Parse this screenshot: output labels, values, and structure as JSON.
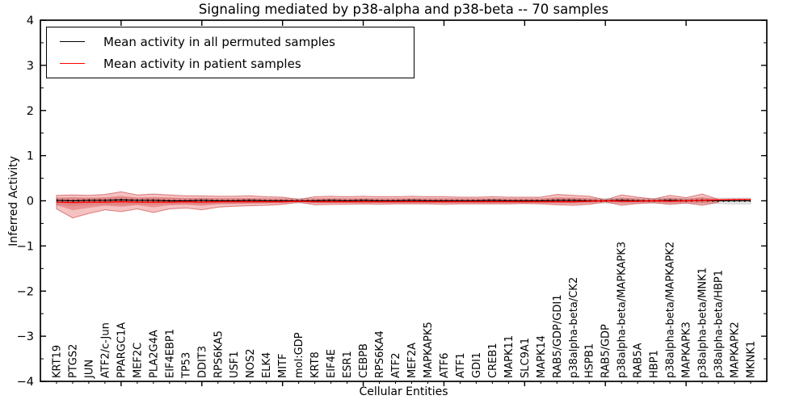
{
  "title": "Signaling mediated by p38-alpha and p38-beta -- 70 samples",
  "legend": {
    "items": [
      {
        "label": "Mean activity in all permuted samples",
        "color": "#000000"
      },
      {
        "label": "Mean activity in patient samples",
        "color": "#ff0000"
      }
    ]
  },
  "axes": {
    "xlabel": "Cellular Entities",
    "ylabel": "Inferred Activity",
    "ytick_labels": [
      "4",
      "3",
      "2",
      "1",
      "0",
      "−1",
      "−2",
      "−3",
      "−4"
    ],
    "ylim": [
      -4,
      4
    ]
  },
  "chart_data": {
    "type": "area",
    "title": "Signaling mediated by p38-alpha and p38-beta -- 70 samples",
    "xlabel": "Cellular Entities",
    "ylabel": "Inferred Activity",
    "ylim": [
      -4,
      4
    ],
    "ytick_step": 1,
    "ytick_minor_step": 0.5,
    "xtick_major_step": 5,
    "legend_position": "upper left",
    "grid": false,
    "categories": [
      "KRT19",
      "PTGS2",
      "JUN",
      "ATF2/c-Jun",
      "PPARGC1A",
      "MEF2C",
      "PLA2G4A",
      "EIF4EBP1",
      "TP53",
      "DDIT3",
      "RPS6KA5",
      "USF1",
      "NOS2",
      "ELK4",
      "MITF",
      "mol:GDP",
      "KRT8",
      "EIF4E",
      "ESR1",
      "CEBPB",
      "RPS6KA4",
      "ATF2",
      "MEF2A",
      "MAPKAPK5",
      "ATF6",
      "ATF1",
      "GDI1",
      "CREB1",
      "MAPK11",
      "SLC9A1",
      "MAPK14",
      "RAB5/GDP/GDI1",
      "p38alpha-beta/CK2",
      "HSPB1",
      "RAB5/GDP",
      "p38alpha-beta/MAPKAPK3",
      "RAB5A",
      "HBP1",
      "p38alpha-beta/MAPKAPK2",
      "MAPKAPK3",
      "p38alpha-beta/MNK1",
      "p38alpha-beta/HBP1",
      "MAPKAPK2",
      "MKNK1"
    ],
    "series": [
      {
        "name": "permuted_mean",
        "values": [
          0.01,
          0.0,
          0.01,
          0.01,
          0.02,
          0.01,
          0.01,
          0.0,
          0.0,
          0.01,
          0.0,
          0.0,
          0.01,
          0.0,
          0.0,
          0.0,
          0.0,
          0.01,
          0.0,
          0.01,
          0.0,
          0.0,
          0.01,
          0.0,
          0.0,
          0.0,
          0.0,
          0.01,
          0.0,
          0.0,
          0.0,
          0.01,
          0.01,
          0.0,
          0.0,
          0.01,
          0.0,
          0.0,
          0.01,
          0.0,
          0.01,
          0.0,
          0.0,
          0.0
        ]
      },
      {
        "name": "patient_mean",
        "values": [
          -0.03,
          -0.04,
          -0.03,
          -0.03,
          -0.02,
          -0.03,
          -0.03,
          -0.03,
          -0.02,
          -0.03,
          -0.02,
          -0.02,
          -0.02,
          -0.02,
          -0.02,
          -0.01,
          -0.02,
          -0.02,
          -0.02,
          -0.02,
          -0.02,
          -0.02,
          -0.02,
          -0.02,
          -0.02,
          -0.02,
          -0.02,
          -0.02,
          -0.02,
          -0.02,
          -0.02,
          -0.02,
          -0.02,
          -0.01,
          0.0,
          -0.01,
          -0.01,
          0.0,
          -0.01,
          0.0,
          0.01,
          0.02,
          0.03,
          0.03
        ]
      },
      {
        "name": "permuted_band_upper",
        "values": [
          0.06,
          0.07,
          0.06,
          0.06,
          0.07,
          0.06,
          0.06,
          0.06,
          0.05,
          0.06,
          0.05,
          0.05,
          0.05,
          0.05,
          0.05,
          0.05,
          0.05,
          0.05,
          0.05,
          0.05,
          0.05,
          0.05,
          0.05,
          0.05,
          0.05,
          0.05,
          0.05,
          0.05,
          0.05,
          0.05,
          0.05,
          0.06,
          0.06,
          0.05,
          0.05,
          0.06,
          0.05,
          0.05,
          0.06,
          0.05,
          0.06,
          0.06,
          0.06,
          0.06
        ]
      },
      {
        "name": "permuted_band_lower",
        "values": [
          -0.08,
          -0.1,
          -0.08,
          -0.07,
          -0.08,
          -0.07,
          -0.07,
          -0.07,
          -0.06,
          -0.07,
          -0.06,
          -0.06,
          -0.06,
          -0.05,
          -0.05,
          -0.05,
          -0.05,
          -0.05,
          -0.05,
          -0.05,
          -0.05,
          -0.05,
          -0.05,
          -0.05,
          -0.05,
          -0.05,
          -0.05,
          -0.05,
          -0.05,
          -0.05,
          -0.05,
          -0.06,
          -0.06,
          -0.05,
          -0.05,
          -0.06,
          -0.05,
          -0.05,
          -0.06,
          -0.05,
          -0.06,
          -0.06,
          -0.07,
          -0.07
        ]
      },
      {
        "name": "patient_band_upper",
        "values": [
          0.12,
          0.13,
          0.12,
          0.14,
          0.2,
          0.13,
          0.15,
          0.13,
          0.11,
          0.11,
          0.1,
          0.1,
          0.11,
          0.09,
          0.08,
          0.03,
          0.09,
          0.1,
          0.09,
          0.1,
          0.09,
          0.09,
          0.1,
          0.09,
          0.09,
          0.08,
          0.08,
          0.09,
          0.08,
          0.08,
          0.08,
          0.14,
          0.12,
          0.1,
          0.02,
          0.13,
          0.08,
          0.04,
          0.12,
          0.07,
          0.15,
          0.03,
          0.0,
          0.0
        ]
      },
      {
        "name": "patient_band_lower",
        "values": [
          -0.18,
          -0.38,
          -0.28,
          -0.2,
          -0.24,
          -0.18,
          -0.26,
          -0.18,
          -0.16,
          -0.2,
          -0.14,
          -0.12,
          -0.11,
          -0.1,
          -0.08,
          -0.03,
          -0.09,
          -0.08,
          -0.08,
          -0.07,
          -0.08,
          -0.07,
          -0.07,
          -0.07,
          -0.08,
          -0.07,
          -0.07,
          -0.07,
          -0.07,
          -0.06,
          -0.07,
          -0.09,
          -0.1,
          -0.08,
          -0.02,
          -0.1,
          -0.06,
          -0.04,
          -0.08,
          -0.05,
          -0.1,
          -0.03,
          0.0,
          0.0
        ]
      }
    ],
    "colors": {
      "permuted_line": "#000000",
      "patient_line": "#ff0000",
      "patient_band_fill": "#e04545",
      "patient_band_edge": "#c22828",
      "permuted_band_fill": "#e4e4e4",
      "permuted_band_edge": "#cfcfcf"
    }
  }
}
